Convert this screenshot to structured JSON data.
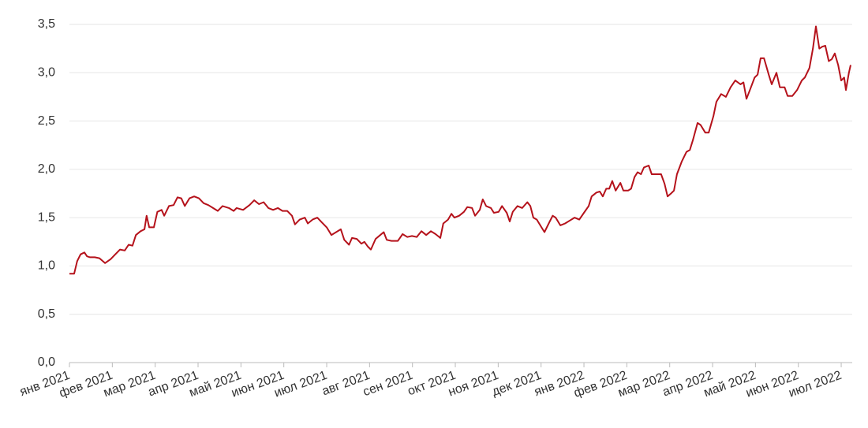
{
  "chart_data": {
    "type": "line",
    "xlim": [
      0,
      18.22
    ],
    "ylim": [
      0,
      3.5
    ],
    "xticks": [
      {
        "value": 0,
        "label": "янв 2021"
      },
      {
        "value": 1,
        "label": "фев 2021"
      },
      {
        "value": 2,
        "label": "мар 2021"
      },
      {
        "value": 3,
        "label": "апр 2021"
      },
      {
        "value": 4,
        "label": "май 2021"
      },
      {
        "value": 5,
        "label": "июн 2021"
      },
      {
        "value": 6,
        "label": "июл 2021"
      },
      {
        "value": 7,
        "label": "авг 2021"
      },
      {
        "value": 8,
        "label": "сен 2021"
      },
      {
        "value": 9,
        "label": "окт 2021"
      },
      {
        "value": 10,
        "label": "ноя 2021"
      },
      {
        "value": 11,
        "label": "дек 2021"
      },
      {
        "value": 12,
        "label": "янв 2022"
      },
      {
        "value": 13,
        "label": "фев 2022"
      },
      {
        "value": 14,
        "label": "мар 2022"
      },
      {
        "value": 15,
        "label": "апр 2022"
      },
      {
        "value": 16,
        "label": "май 2022"
      },
      {
        "value": 17,
        "label": "июн 2022"
      },
      {
        "value": 18,
        "label": "июл 2022"
      }
    ],
    "yticks": [
      {
        "value": 0,
        "label": "0,0"
      },
      {
        "value": 0.5,
        "label": "0,5"
      },
      {
        "value": 1,
        "label": "1,0"
      },
      {
        "value": 1.5,
        "label": "1,5"
      },
      {
        "value": 2,
        "label": "2,0"
      },
      {
        "value": 2.5,
        "label": "2,5"
      },
      {
        "value": 3,
        "label": "3,0"
      },
      {
        "value": 3.5,
        "label": "3,5"
      }
    ],
    "grid": true,
    "series": [
      {
        "color": "#b5121b",
        "x": [
          0,
          0.11,
          0.18,
          0.26,
          0.35,
          0.41,
          0.48,
          0.59,
          0.7,
          0.83,
          0.96,
          1.07,
          1.18,
          1.29,
          1.38,
          1.47,
          1.55,
          1.66,
          1.75,
          1.8,
          1.86,
          1.97,
          2.05,
          2.15,
          2.21,
          2.32,
          2.43,
          2.52,
          2.61,
          2.69,
          2.8,
          2.91,
          3.02,
          3.13,
          3.24,
          3.35,
          3.46,
          3.57,
          3.72,
          3.83,
          3.9,
          4.05,
          4.2,
          4.31,
          4.42,
          4.53,
          4.64,
          4.75,
          4.86,
          4.97,
          5.08,
          5.19,
          5.26,
          5.37,
          5.49,
          5.56,
          5.67,
          5.78,
          5.89,
          6.0,
          6.11,
          6.22,
          6.33,
          6.41,
          6.52,
          6.59,
          6.7,
          6.81,
          6.88,
          6.96,
          7.03,
          7.14,
          7.25,
          7.33,
          7.4,
          7.51,
          7.66,
          7.77,
          7.88,
          7.99,
          8.1,
          8.21,
          8.32,
          8.43,
          8.54,
          8.65,
          8.72,
          8.83,
          8.91,
          8.98,
          9.09,
          9.2,
          9.28,
          9.39,
          9.46,
          9.57,
          9.64,
          9.72,
          9.83,
          9.9,
          10.01,
          10.09,
          10.2,
          10.27,
          10.34,
          10.45,
          10.56,
          10.68,
          10.75,
          10.82,
          10.9,
          11.01,
          11.08,
          11.19,
          11.27,
          11.34,
          11.45,
          11.56,
          11.67,
          11.78,
          11.89,
          12.0,
          12.11,
          12.18,
          12.29,
          12.37,
          12.44,
          12.52,
          12.59,
          12.66,
          12.74,
          12.85,
          12.92,
          13.03,
          13.1,
          13.18,
          13.25,
          13.33,
          13.4,
          13.51,
          13.58,
          13.69,
          13.8,
          13.88,
          13.95,
          14.03,
          14.1,
          14.17,
          14.28,
          14.39,
          14.47,
          14.54,
          14.65,
          14.72,
          14.83,
          14.91,
          15.02,
          15.09,
          15.2,
          15.31,
          15.42,
          15.53,
          15.65,
          15.72,
          15.79,
          15.87,
          15.98,
          16.05,
          16.12,
          16.2,
          16.31,
          16.38,
          16.49,
          16.57,
          16.68,
          16.75,
          16.86,
          16.97,
          17.08,
          17.15,
          17.26,
          17.34,
          17.41,
          17.49,
          17.56,
          17.63,
          17.71,
          17.78,
          17.85,
          17.93,
          18.0,
          18.07,
          18.11,
          18.18,
          18.22
        ],
        "values": [
          0.92,
          0.92,
          1.05,
          1.12,
          1.14,
          1.1,
          1.09,
          1.09,
          1.08,
          1.03,
          1.07,
          1.12,
          1.17,
          1.16,
          1.22,
          1.21,
          1.32,
          1.36,
          1.38,
          1.52,
          1.4,
          1.4,
          1.56,
          1.58,
          1.52,
          1.62,
          1.63,
          1.71,
          1.7,
          1.62,
          1.7,
          1.72,
          1.7,
          1.65,
          1.63,
          1.6,
          1.57,
          1.62,
          1.6,
          1.57,
          1.6,
          1.58,
          1.63,
          1.68,
          1.64,
          1.66,
          1.6,
          1.58,
          1.6,
          1.57,
          1.57,
          1.52,
          1.43,
          1.48,
          1.5,
          1.44,
          1.48,
          1.5,
          1.45,
          1.4,
          1.32,
          1.35,
          1.38,
          1.27,
          1.22,
          1.29,
          1.28,
          1.23,
          1.25,
          1.2,
          1.17,
          1.28,
          1.32,
          1.35,
          1.27,
          1.26,
          1.26,
          1.33,
          1.3,
          1.31,
          1.3,
          1.36,
          1.32,
          1.36,
          1.33,
          1.29,
          1.44,
          1.48,
          1.54,
          1.5,
          1.52,
          1.56,
          1.61,
          1.6,
          1.52,
          1.58,
          1.69,
          1.62,
          1.6,
          1.55,
          1.56,
          1.62,
          1.55,
          1.46,
          1.56,
          1.62,
          1.6,
          1.66,
          1.62,
          1.5,
          1.48,
          1.4,
          1.35,
          1.45,
          1.52,
          1.5,
          1.42,
          1.44,
          1.47,
          1.5,
          1.48,
          1.55,
          1.62,
          1.72,
          1.76,
          1.77,
          1.72,
          1.8,
          1.8,
          1.88,
          1.78,
          1.86,
          1.78,
          1.78,
          1.8,
          1.92,
          1.97,
          1.95,
          2.02,
          2.04,
          1.95,
          1.95,
          1.95,
          1.85,
          1.72,
          1.75,
          1.78,
          1.95,
          2.08,
          2.18,
          2.2,
          2.3,
          2.48,
          2.46,
          2.38,
          2.38,
          2.55,
          2.7,
          2.78,
          2.75,
          2.85,
          2.92,
          2.88,
          2.9,
          2.73,
          2.82,
          2.95,
          2.98,
          3.15,
          3.15,
          2.98,
          2.88,
          3.0,
          2.85,
          2.85,
          2.76,
          2.76,
          2.82,
          2.92,
          2.95,
          3.05,
          3.25,
          3.48,
          3.25,
          3.27,
          3.28,
          3.12,
          3.14,
          3.2,
          3.08,
          2.92,
          2.95,
          2.82,
          3.0,
          3.08
        ]
      }
    ]
  }
}
